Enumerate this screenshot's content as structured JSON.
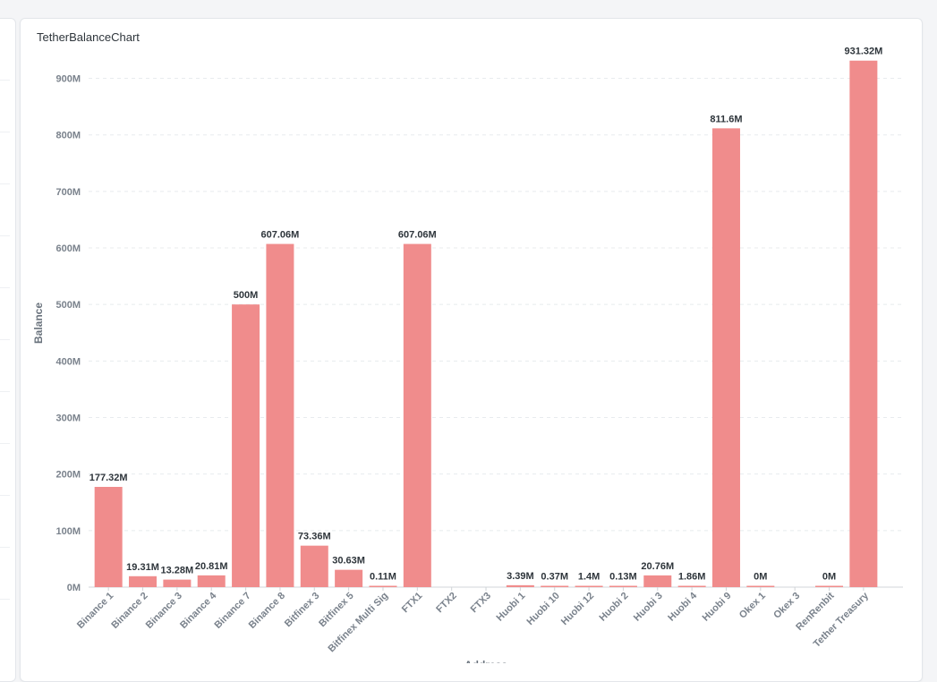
{
  "card": {
    "title": "TetherBalanceChart"
  },
  "chart_data": {
    "type": "bar",
    "title": "TetherBalanceChart",
    "xlabel": "Address",
    "ylabel": "Balance",
    "ylim": [
      0,
      900
    ],
    "yticks": [
      0,
      100,
      200,
      300,
      400,
      500,
      600,
      700,
      800,
      900
    ],
    "ytick_labels": [
      "0M",
      "100M",
      "200M",
      "300M",
      "400M",
      "500M",
      "600M",
      "700M",
      "800M",
      "900M"
    ],
    "grid": true,
    "bar_color": "#f08c8c",
    "categories": [
      "Binance 1",
      "Binance 2",
      "Binance 3",
      "Binance 4",
      "Binance 7",
      "Binance 8",
      "Bitfinex 3",
      "Bitfinex 5",
      "Bitfinex Multi Sig",
      "FTX1",
      "FTX2",
      "FTX3",
      "Huobi 1",
      "Huobi 10",
      "Huobi 12",
      "Huobi 2",
      "Huobi 3",
      "Huobi 4",
      "Huobi 9",
      "Okex 1",
      "Okex 3",
      "RenRenbit",
      "Tether Treasury"
    ],
    "values": [
      177.32,
      19.31,
      13.28,
      20.81,
      500,
      607.06,
      73.36,
      30.63,
      0.11,
      607.06,
      null,
      null,
      3.39,
      0.37,
      1.4,
      0.13,
      20.76,
      1.86,
      811.6,
      0,
      null,
      0,
      931.32
    ],
    "data_labels": [
      "177.32M",
      "19.31M",
      "13.28M",
      "20.81M",
      "500M",
      "607.06M",
      "73.36M",
      "30.63M",
      "0.11M",
      "607.06M",
      "",
      "",
      "3.39M",
      "0.37M",
      "1.4M",
      "0.13M",
      "20.76M",
      "1.86M",
      "811.6M",
      "0M",
      "",
      "0M",
      "931.32M"
    ]
  }
}
